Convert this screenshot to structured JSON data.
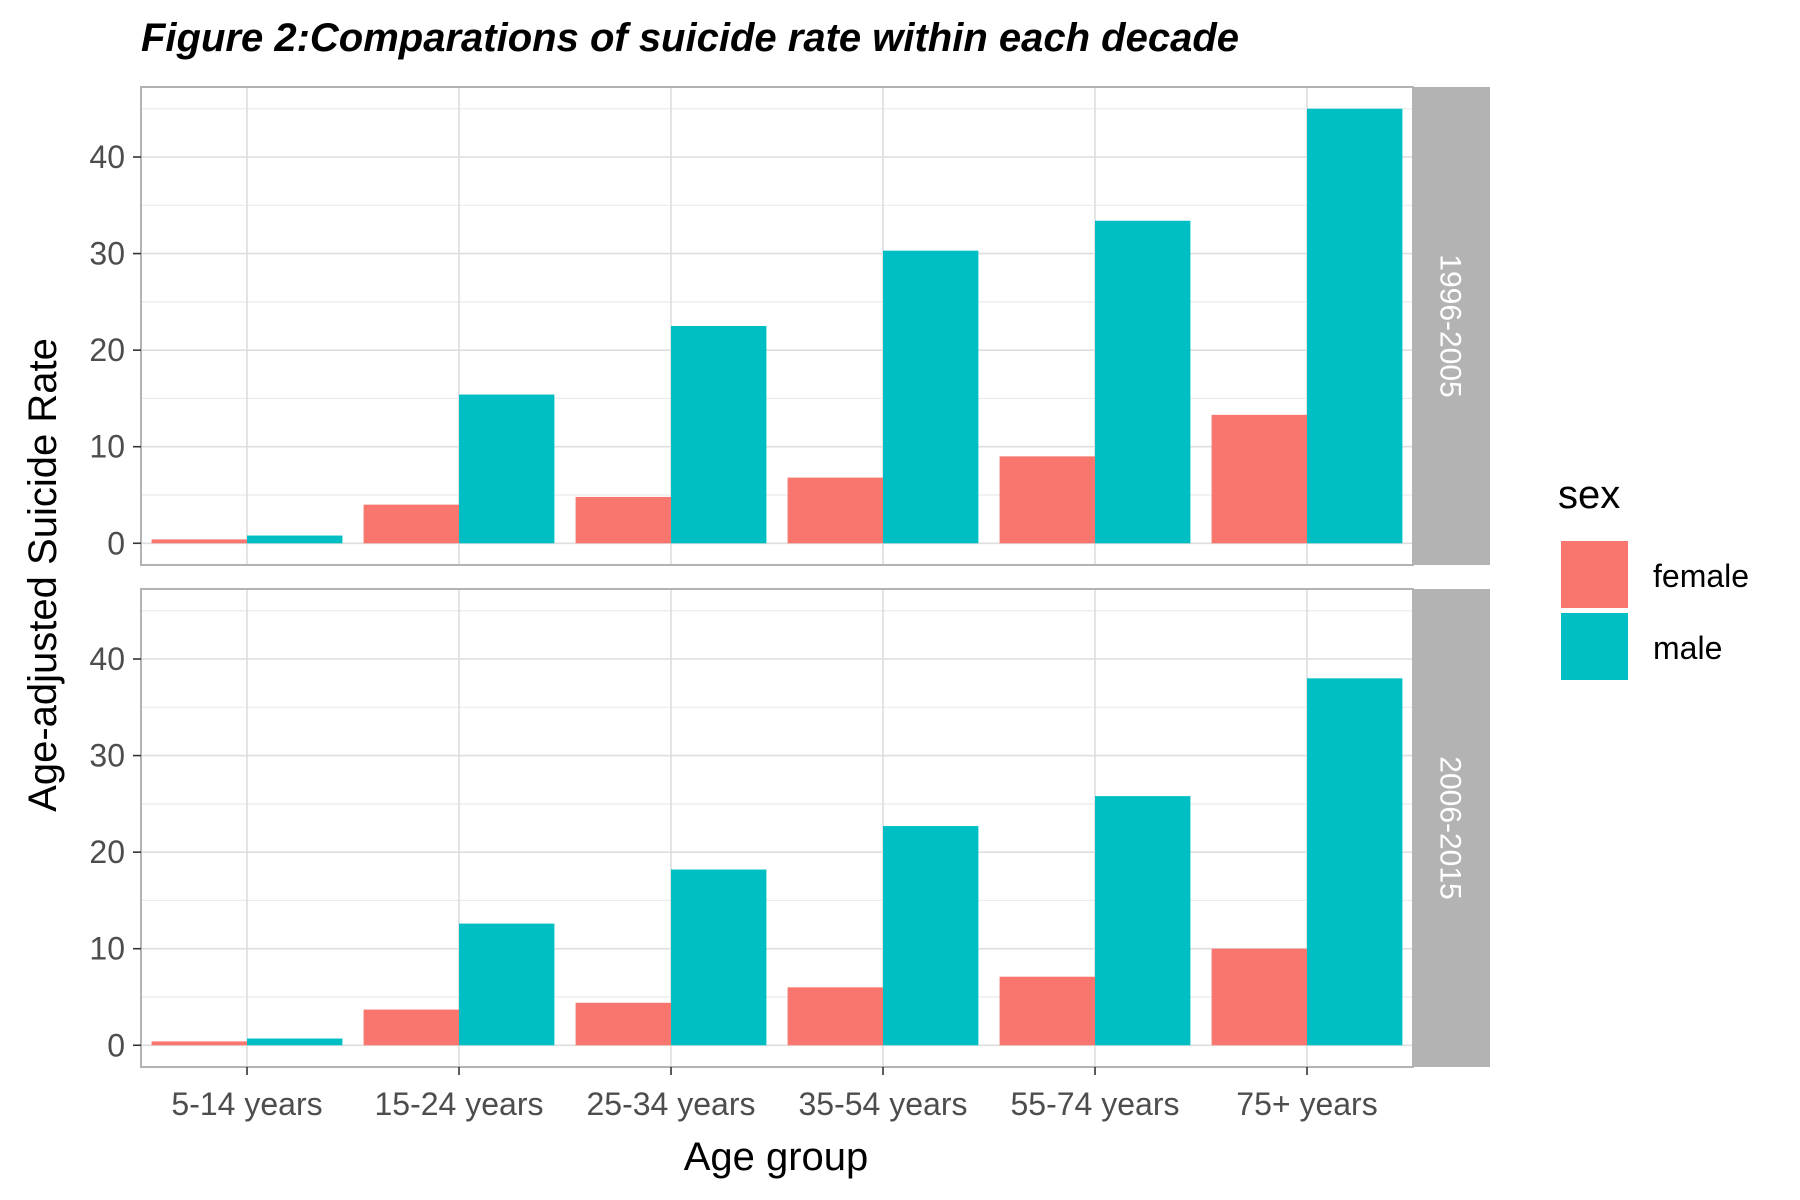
{
  "chart_data": {
    "type": "bar",
    "title": "Figure 2:Comparations of suicide rate within each decade",
    "xlabel": "Age group",
    "ylabel": "Age-adjusted Suicide Rate",
    "categories": [
      "5-14 years",
      "15-24 years",
      "25-34 years",
      "35-54 years",
      "55-74 years",
      "75+ years"
    ],
    "ylim": [
      0,
      45
    ],
    "yticks": [
      0,
      10,
      20,
      30,
      40
    ],
    "grid": true,
    "legend": {
      "title": "sex",
      "placement": "right",
      "entries": [
        "female",
        "male"
      ]
    },
    "colors": {
      "female": "#F8766D",
      "male": "#00BFC4",
      "strip": "#B3B3B3"
    },
    "panels": [
      {
        "label": "1996-2005",
        "series": [
          {
            "name": "female",
            "values": [
              0.4,
              4.0,
              4.8,
              6.8,
              9.0,
              13.3
            ]
          },
          {
            "name": "male",
            "values": [
              0.8,
              15.4,
              22.5,
              30.3,
              33.4,
              45.0
            ]
          }
        ]
      },
      {
        "label": "2006-2015",
        "series": [
          {
            "name": "female",
            "values": [
              0.4,
              3.7,
              4.4,
              6.0,
              7.1,
              10.0
            ]
          },
          {
            "name": "male",
            "values": [
              0.7,
              12.6,
              18.2,
              22.7,
              25.8,
              38.0
            ]
          }
        ]
      }
    ]
  }
}
